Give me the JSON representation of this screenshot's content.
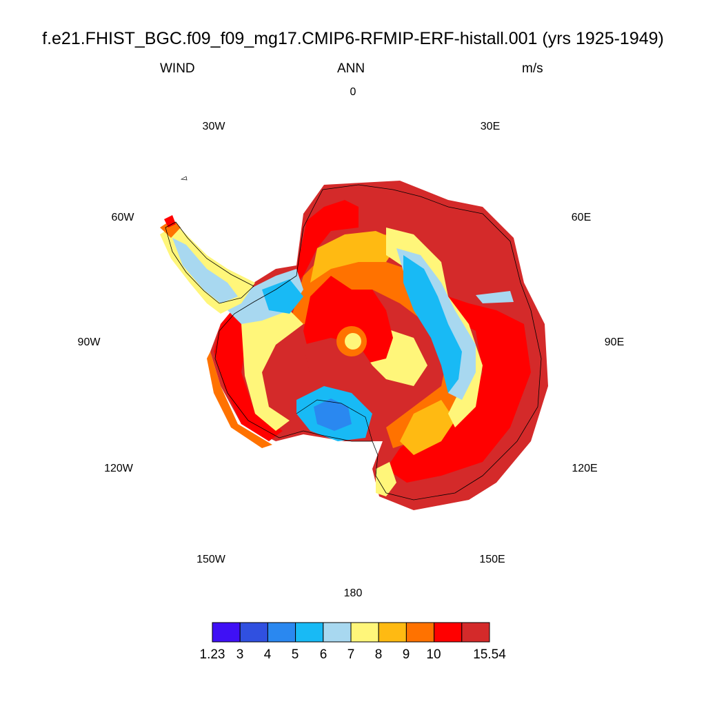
{
  "title": "f.e21.FHIST_BGC.f09_f09_mg17.CMIP6-RFMIP-ERF-histall.001 (yrs 1925-1949)",
  "left_label": "WIND",
  "center_label": "ANN",
  "right_label": "m/s",
  "longitude_labels": [
    "0",
    "30E",
    "60E",
    "90E",
    "120E",
    "150E",
    "180",
    "150W",
    "120W",
    "90W",
    "60W",
    "30W"
  ],
  "colorbar": {
    "labels": [
      "1.23",
      "3",
      "4",
      "5",
      "6",
      "7",
      "8",
      "9",
      "10",
      "15.54"
    ],
    "colors": [
      "#3f10f5",
      "#3050e0",
      "#2a88f0",
      "#18baf5",
      "#a8d8f0",
      "#fff67a",
      "#ffba12",
      "#ff7200",
      "#ff0000",
      "#d42a2a"
    ]
  },
  "map_colors": {
    "bg_low": "#18baf5",
    "mid": "#fff67a",
    "warm": "#ffba12",
    "orange": "#ff7200",
    "red": "#ff0000",
    "dark_red": "#d42a2a",
    "light_blue": "#a8d8f0",
    "blue": "#2a88f0",
    "coast": "#000000"
  }
}
